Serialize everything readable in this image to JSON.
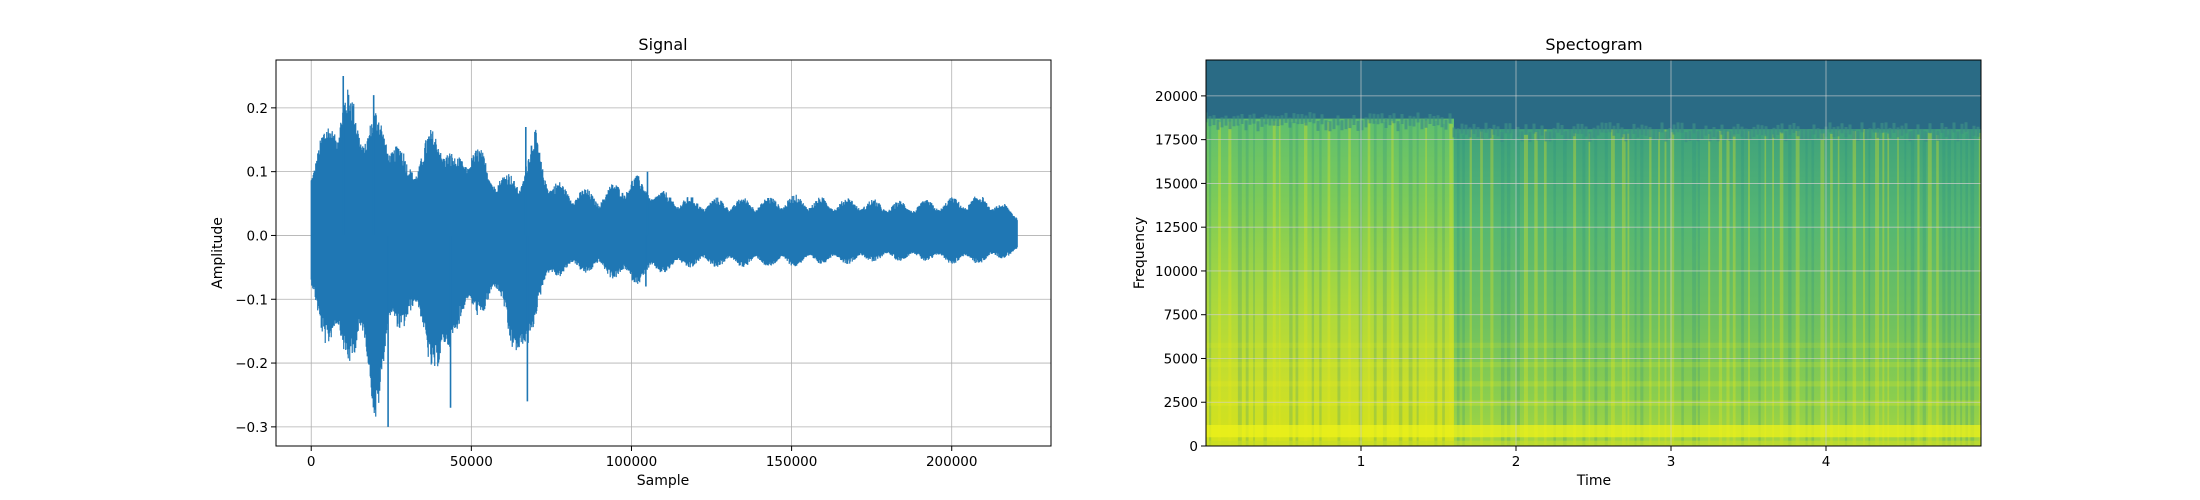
{
  "chart_data": [
    {
      "type": "line",
      "title": "Signal",
      "xlabel": "Sample",
      "ylabel": "Amplitude",
      "xlim": [
        -11000,
        231000
      ],
      "ylim": [
        -0.33,
        0.275
      ],
      "xticks": [
        0,
        50000,
        100000,
        150000,
        200000
      ],
      "xtick_labels": [
        "0",
        "50000",
        "100000",
        "150000",
        "200000"
      ],
      "yticks": [
        -0.3,
        -0.2,
        -0.1,
        0.0,
        0.1,
        0.2
      ],
      "ytick_labels": [
        "−0.3",
        "−0.2",
        "−0.1",
        "0.0",
        "0.1",
        "0.2"
      ],
      "grid": true,
      "color": "#1f77b4",
      "series": [
        {
          "x_range": [
            0,
            220500
          ],
          "envelope_x": [
            0,
            5000,
            10000,
            15000,
            20000,
            25000,
            30000,
            35000,
            40000,
            45000,
            50000,
            55000,
            60000,
            65000,
            70000,
            75000,
            80000,
            90000,
            100000,
            110000,
            120000,
            130000,
            140000,
            150000,
            160000,
            170000,
            180000,
            190000,
            200000,
            210000,
            220500
          ],
          "envelope_max": [
            0.13,
            0.18,
            0.25,
            0.2,
            0.2,
            0.18,
            0.12,
            0.15,
            0.19,
            0.12,
            0.16,
            0.12,
            0.1,
            0.1,
            0.17,
            0.09,
            0.08,
            0.07,
            0.1,
            0.07,
            0.06,
            0.06,
            0.06,
            0.065,
            0.06,
            0.06,
            0.055,
            0.055,
            0.06,
            0.065,
            0.04
          ],
          "envelope_min": [
            -0.11,
            -0.18,
            -0.21,
            -0.19,
            -0.3,
            -0.17,
            -0.14,
            -0.16,
            -0.27,
            -0.15,
            -0.14,
            -0.12,
            -0.11,
            -0.26,
            -0.13,
            -0.07,
            -0.06,
            -0.06,
            -0.08,
            -0.06,
            -0.05,
            -0.05,
            -0.05,
            -0.05,
            -0.045,
            -0.045,
            -0.04,
            -0.04,
            -0.045,
            -0.045,
            -0.03
          ],
          "spikes": [
            {
              "x": 10000,
              "y": 0.25
            },
            {
              "x": 19500,
              "y": 0.22
            },
            {
              "x": 24000,
              "y": -0.3
            },
            {
              "x": 43500,
              "y": -0.27
            },
            {
              "x": 67000,
              "y": 0.17
            },
            {
              "x": 67500,
              "y": -0.26
            },
            {
              "x": 105000,
              "y": 0.1
            },
            {
              "x": 104500,
              "y": -0.08
            }
          ]
        }
      ]
    },
    {
      "type": "heatmap",
      "title": "Spectogram",
      "xlabel": "Time",
      "ylabel": "Frequency",
      "xlim": [
        0,
        5.0
      ],
      "ylim": [
        0,
        22050
      ],
      "xticks": [
        1,
        2,
        3,
        4
      ],
      "xtick_labels": [
        "1",
        "2",
        "3",
        "4"
      ],
      "yticks": [
        0,
        2500,
        5000,
        7500,
        10000,
        12500,
        15000,
        17500,
        20000
      ],
      "ytick_labels": [
        "0",
        "2500",
        "5000",
        "7500",
        "10000",
        "12500",
        "15000",
        "17500",
        "20000"
      ],
      "grid": true,
      "colormap": "viridis",
      "colors": {
        "low": "#2a6b85",
        "mid": "#2c9c84",
        "high": "#d4e21a"
      },
      "regions": {
        "cutoff_hz_before_1_6s": 18700,
        "cutoff_hz_after_1_6s": 18100,
        "bright_lowband_hz": [
          500,
          1200
        ]
      }
    }
  ]
}
